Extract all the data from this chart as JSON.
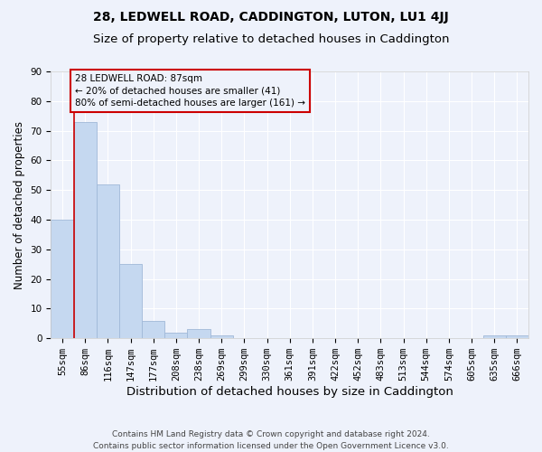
{
  "title1": "28, LEDWELL ROAD, CADDINGTON, LUTON, LU1 4JJ",
  "title2": "Size of property relative to detached houses in Caddington",
  "xlabel": "Distribution of detached houses by size in Caddington",
  "ylabel": "Number of detached properties",
  "categories": [
    "55sqm",
    "86sqm",
    "116sqm",
    "147sqm",
    "177sqm",
    "208sqm",
    "238sqm",
    "269sqm",
    "299sqm",
    "330sqm",
    "361sqm",
    "391sqm",
    "422sqm",
    "452sqm",
    "483sqm",
    "513sqm",
    "544sqm",
    "574sqm",
    "605sqm",
    "635sqm",
    "666sqm"
  ],
  "values": [
    40,
    73,
    52,
    25,
    6,
    2,
    3,
    1,
    0,
    0,
    0,
    0,
    0,
    0,
    0,
    0,
    0,
    0,
    0,
    1,
    1
  ],
  "bar_color": "#c5d8f0",
  "bar_edge_color": "#a0b8d8",
  "background_color": "#eef2fb",
  "grid_color": "#ffffff",
  "annotation_box_text": "28 LEDWELL ROAD: 87sqm\n← 20% of detached houses are smaller (41)\n80% of semi-detached houses are larger (161) →",
  "annotation_box_color": "#cc0000",
  "vline_color": "#cc0000",
  "ylim": [
    0,
    90
  ],
  "yticks": [
    0,
    10,
    20,
    30,
    40,
    50,
    60,
    70,
    80,
    90
  ],
  "footnote": "Contains HM Land Registry data © Crown copyright and database right 2024.\nContains public sector information licensed under the Open Government Licence v3.0.",
  "title1_fontsize": 10,
  "title2_fontsize": 9.5,
  "axis_label_fontsize": 8.5,
  "tick_fontsize": 7.5,
  "annotation_fontsize": 7.5,
  "footnote_fontsize": 6.5
}
